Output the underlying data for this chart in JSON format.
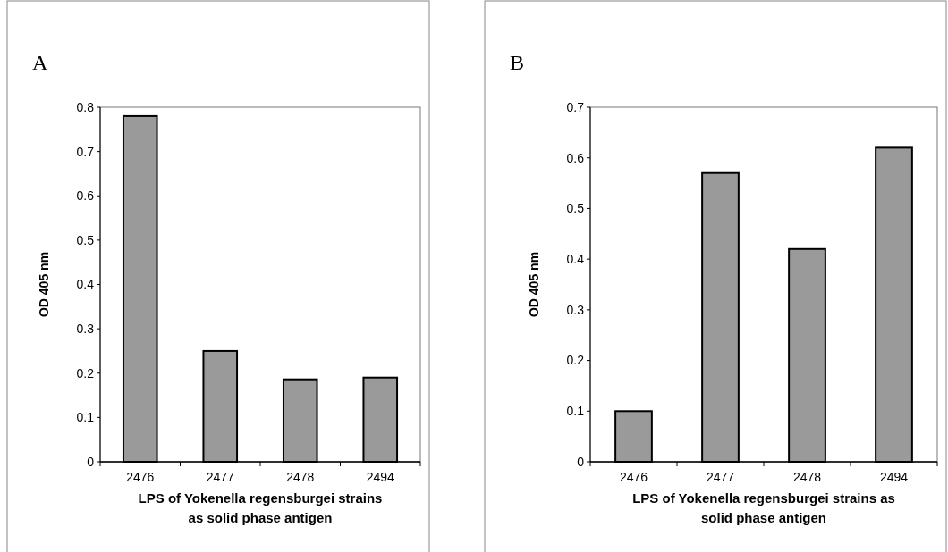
{
  "chart_data": [
    {
      "type": "bar",
      "title": "A",
      "categories": [
        "2476",
        "2477",
        "2478",
        "2494"
      ],
      "values": [
        0.78,
        0.25,
        0.186,
        0.19
      ],
      "color": "#9a9a9a",
      "ylim": [
        0,
        0.8
      ],
      "yticks": [
        0,
        0.1,
        0.2,
        0.3,
        0.4,
        0.5,
        0.6,
        0.7,
        0.8
      ],
      "ylabel": "OD 405 nm",
      "xlabel": "LPS of Yokenella regensburgei strains as solid phase antigen",
      "grid": false
    },
    {
      "type": "bar",
      "title": "B",
      "categories": [
        "2476",
        "2477",
        "2478",
        "2494"
      ],
      "values": [
        0.1,
        0.57,
        0.42,
        0.62
      ],
      "color": "#9a9a9a",
      "ylim": [
        0,
        0.7
      ],
      "yticks": [
        0,
        0.1,
        0.2,
        0.3,
        0.4,
        0.5,
        0.6,
        0.7
      ],
      "ylabel": "OD 405 nm",
      "xlabel": "LPS of Yokenella regensburgei strains as solid phase antigen",
      "grid": false
    }
  ]
}
